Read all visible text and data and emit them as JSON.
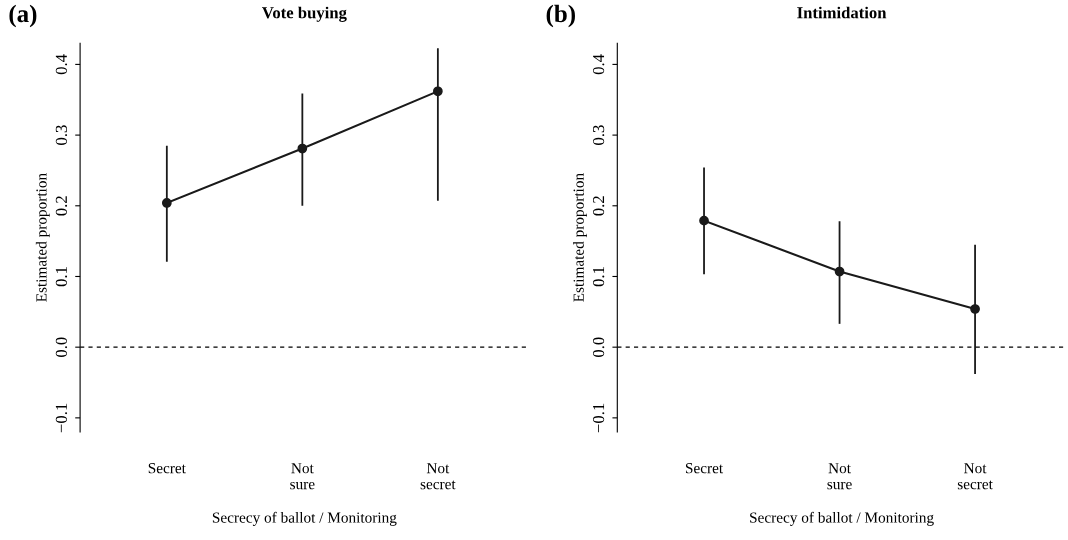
{
  "chart_data": [
    {
      "type": "line",
      "title": "Vote buying",
      "xlabel": "Secrecy of ballot / Monitoring",
      "ylabel": "Estimated proportion",
      "annotations": [
        "(a)"
      ],
      "categories": [
        "Secret",
        "Not\nsure",
        "Not\nsecret"
      ],
      "series": [
        {
          "color": "#1a1a1a",
          "values": [
            0.204,
            0.281,
            0.362
          ],
          "errors": [
            [
              0.121,
              0.285
            ],
            [
              0.2,
              0.359
            ],
            [
              0.207,
              0.423
            ]
          ]
        }
      ],
      "ylim": [
        -0.12,
        0.43
      ],
      "yticks": [
        {
          "value": -0.1,
          "label": "−0.1"
        },
        {
          "value": 0.0,
          "label": "0.0"
        },
        {
          "value": 0.1,
          "label": "0.1"
        },
        {
          "value": 0.2,
          "label": "0.2"
        },
        {
          "value": 0.3,
          "label": "0.3"
        },
        {
          "value": 0.4,
          "label": "0.4"
        }
      ],
      "ref_lines": [
        {
          "axis": "y",
          "value": 0,
          "line_style": "dashed",
          "color": "#000000"
        }
      ],
      "marker": "circle",
      "line_style": "solid",
      "grid": false,
      "legend": false
    },
    {
      "type": "line",
      "title": "Intimidation",
      "xlabel": "Secrecy of ballot / Monitoring",
      "ylabel": "Estimated proportion",
      "annotations": [
        "(b)"
      ],
      "categories": [
        "Secret",
        "Not\nsure",
        "Not\nsecret"
      ],
      "series": [
        {
          "color": "#1a1a1a",
          "values": [
            0.179,
            0.107,
            0.054
          ],
          "errors": [
            [
              0.103,
              0.254
            ],
            [
              0.033,
              0.178
            ],
            [
              -0.038,
              0.145
            ]
          ]
        }
      ],
      "ylim": [
        -0.12,
        0.43
      ],
      "yticks": [
        {
          "value": -0.1,
          "label": "−0.1"
        },
        {
          "value": 0.0,
          "label": "0.0"
        },
        {
          "value": 0.1,
          "label": "0.1"
        },
        {
          "value": 0.2,
          "label": "0.2"
        },
        {
          "value": 0.3,
          "label": "0.3"
        },
        {
          "value": 0.4,
          "label": "0.4"
        }
      ],
      "ref_lines": [
        {
          "axis": "y",
          "value": 0,
          "line_style": "dashed",
          "color": "#000000"
        }
      ],
      "marker": "circle",
      "line_style": "solid",
      "grid": false,
      "legend": false
    }
  ]
}
